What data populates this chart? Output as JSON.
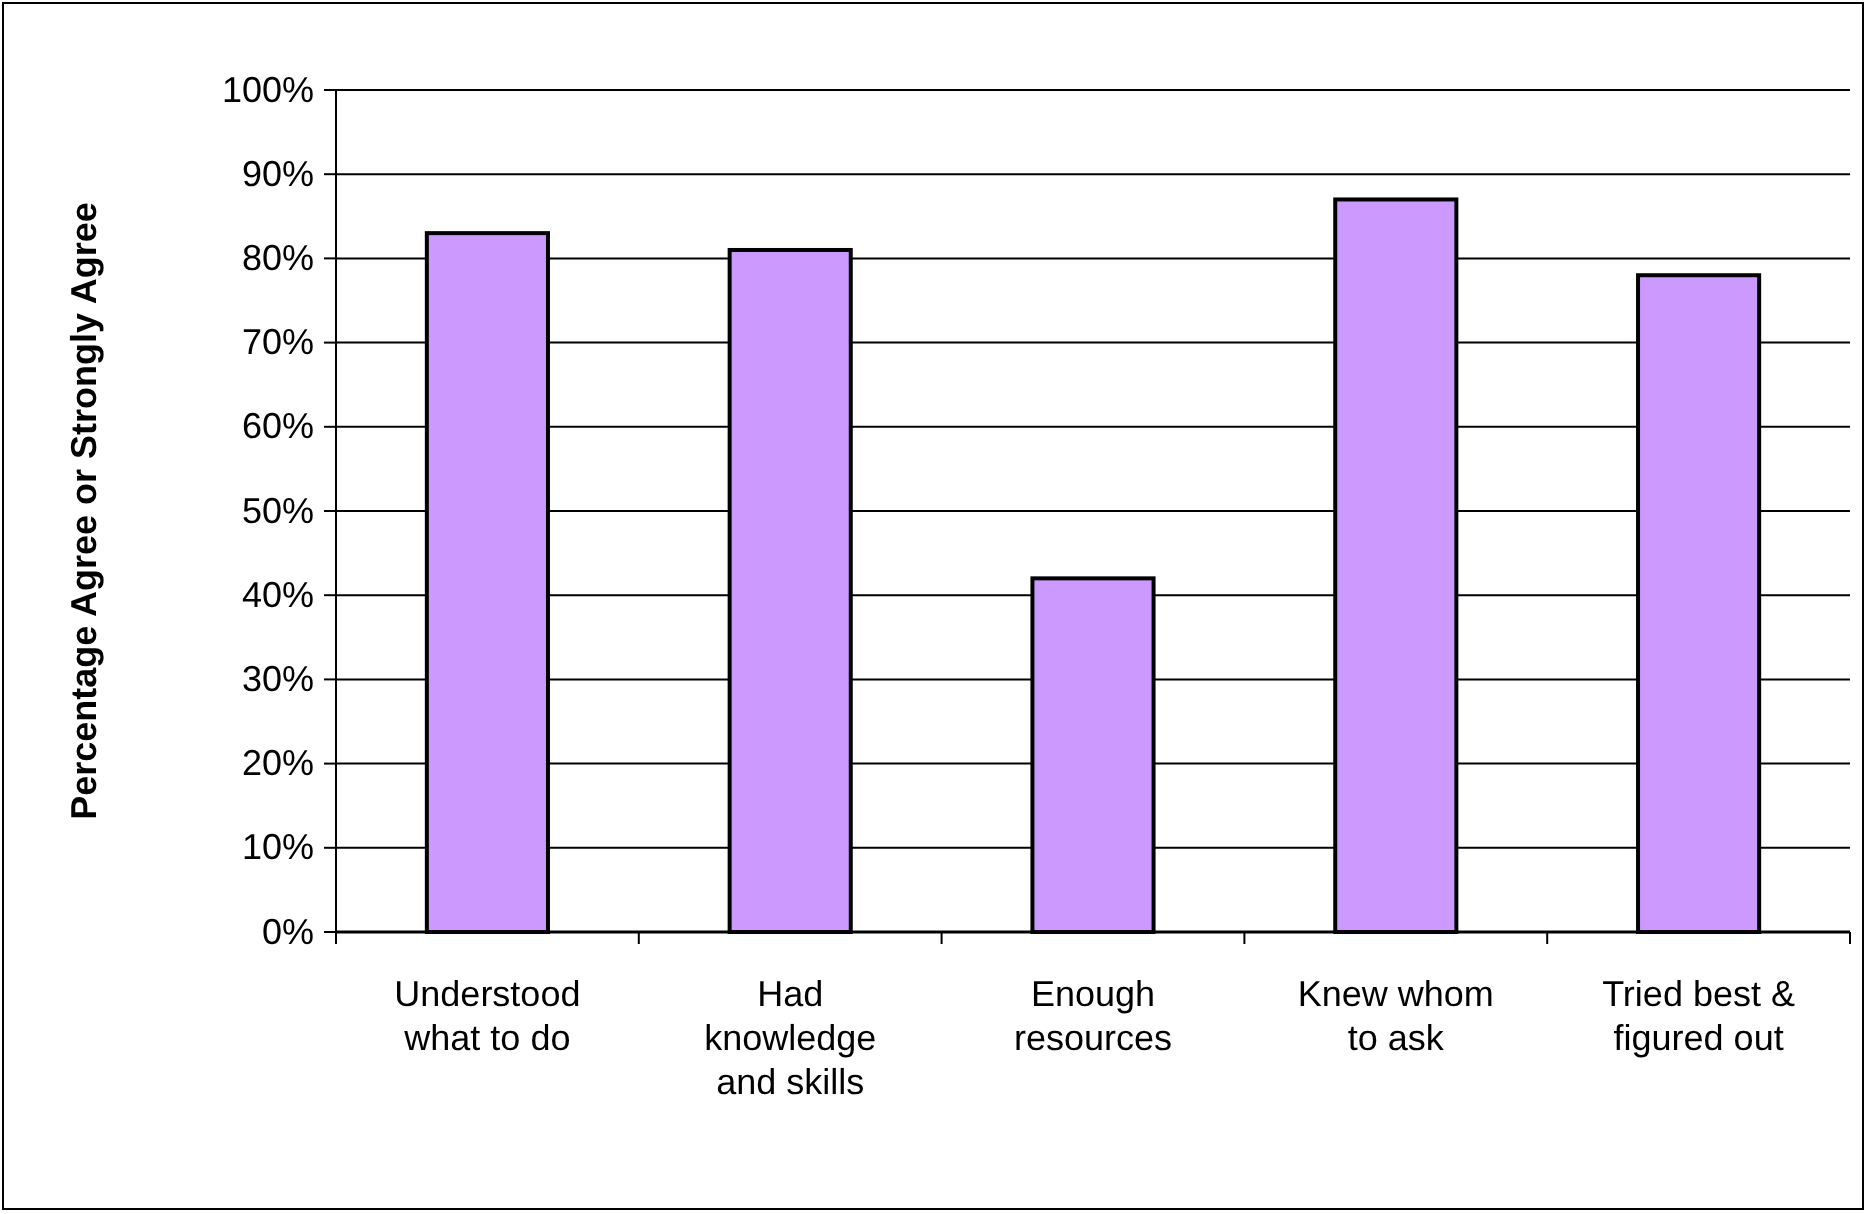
{
  "chart_data": {
    "type": "bar",
    "ylabel": "Percentage Agree or Strongly Agree",
    "categories": [
      "Understood what to do",
      "Had knowledge and skills",
      "Enough resources",
      "Knew whom to ask",
      "Tried best & figured out"
    ],
    "values": [
      83,
      81,
      42,
      87,
      78
    ],
    "color": "#cc99ff",
    "ylim": [
      0,
      100
    ],
    "yticks": [
      {
        "value": 0,
        "label": "0%"
      },
      {
        "value": 10,
        "label": "10%"
      },
      {
        "value": 20,
        "label": "20%"
      },
      {
        "value": 30,
        "label": "30%"
      },
      {
        "value": 40,
        "label": "40%"
      },
      {
        "value": 50,
        "label": "50%"
      },
      {
        "value": 60,
        "label": "60%"
      },
      {
        "value": 70,
        "label": "70%"
      },
      {
        "value": 80,
        "label": "80%"
      },
      {
        "value": 90,
        "label": "90%"
      },
      {
        "value": 100,
        "label": "100%"
      }
    ],
    "grid": "y"
  }
}
